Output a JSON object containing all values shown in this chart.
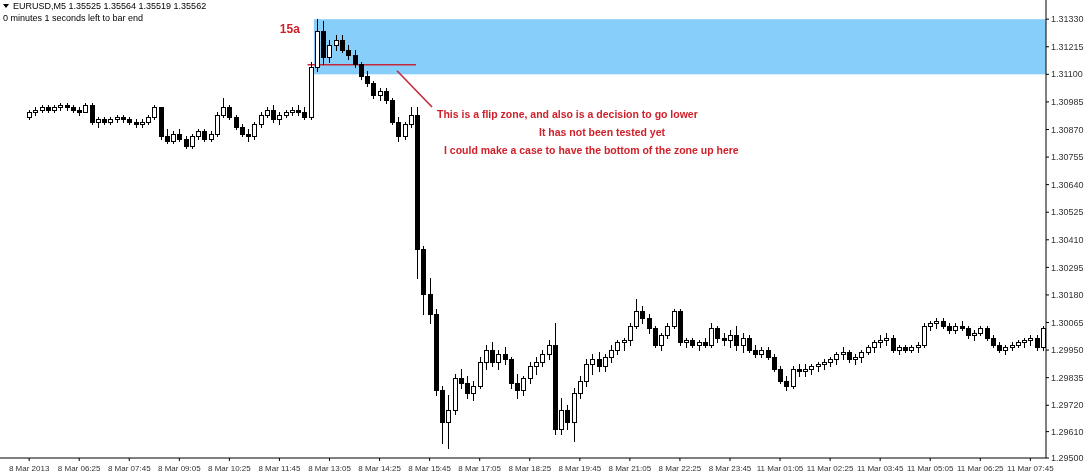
{
  "chart_data": {
    "type": "candlestick",
    "title": "EURUSD,M5 1.35525 1.35564 1.35519 1.35562",
    "subtitle": "0 minutes 1 seconds left to bar end",
    "annotations": [
      "15a",
      "This is a flip zone, and also is a decision to go lower",
      "It has not been tested yet",
      "I could make a case to have the bottom of the zone up here"
    ],
    "categories": [
      "8 Mar 2013",
      null,
      null,
      null,
      null,
      null,
      null,
      null,
      "8 Mar 06:25",
      null,
      null,
      null,
      null,
      null,
      null,
      null,
      "8 Mar 07:45",
      null,
      null,
      null,
      null,
      null,
      null,
      null,
      "8 Mar 09:05",
      null,
      null,
      null,
      null,
      null,
      null,
      null,
      "8 Mar 10:25",
      null,
      null,
      null,
      null,
      null,
      null,
      null,
      "8 Mar 11:45",
      null,
      null,
      null,
      null,
      null,
      null,
      null,
      "8 Mar 13:05",
      null,
      null,
      null,
      null,
      null,
      null,
      null,
      "8 Mar 14:25",
      null,
      null,
      null,
      null,
      null,
      null,
      null,
      "8 Mar 15:45",
      null,
      null,
      null,
      null,
      null,
      null,
      null,
      "8 Mar 17:05",
      null,
      null,
      null,
      null,
      null,
      null,
      null,
      "8 Mar 18:25",
      null,
      null,
      null,
      null,
      null,
      null,
      null,
      "8 Mar 19:45",
      null,
      null,
      null,
      null,
      null,
      null,
      null,
      "8 Mar 21:05",
      null,
      null,
      null,
      null,
      null,
      null,
      null,
      "8 Mar 22:25",
      null,
      null,
      null,
      null,
      null,
      null,
      null,
      "8 Mar 23:45",
      null,
      null,
      null,
      null,
      null,
      null,
      null,
      "11 Mar 01:05",
      null,
      null,
      null,
      null,
      null,
      null,
      null,
      "11 Mar 02:25",
      null,
      null,
      null,
      null,
      null,
      null,
      null,
      "11 Mar 03:45",
      null,
      null,
      null,
      null,
      null,
      null,
      null,
      "11 Mar 05:05",
      null,
      null,
      null,
      null,
      null,
      null,
      null,
      "11 Mar 06:25",
      null,
      null,
      null,
      null,
      null,
      null,
      null,
      "11 Mar 07:45",
      null,
      null
    ],
    "ohlc": [
      [
        1.3092,
        1.3095,
        1.3091,
        1.3094
      ],
      [
        1.3094,
        1.3096,
        1.3093,
        1.3095
      ],
      [
        1.3095,
        1.3097,
        1.3094,
        1.3096
      ],
      [
        1.3096,
        1.3097,
        1.3094,
        1.3095
      ],
      [
        1.3095,
        1.3097,
        1.3094,
        1.3096
      ],
      [
        1.3096,
        1.3098,
        1.3095,
        1.3097
      ],
      [
        1.3097,
        1.3098,
        1.3095,
        1.3096
      ],
      [
        1.3096,
        1.3097,
        1.3094,
        1.3095
      ],
      [
        1.3095,
        1.3096,
        1.3093,
        1.3094
      ],
      [
        1.3094,
        1.3098,
        1.3094,
        1.3097
      ],
      [
        1.3097,
        1.3098,
        1.3089,
        1.309
      ],
      [
        1.309,
        1.3092,
        1.3088,
        1.3091
      ],
      [
        1.3091,
        1.3092,
        1.3089,
        1.309
      ],
      [
        1.309,
        1.3092,
        1.3089,
        1.3091
      ],
      [
        1.3091,
        1.3093,
        1.309,
        1.3092
      ],
      [
        1.3092,
        1.3093,
        1.309,
        1.3091
      ],
      [
        1.3091,
        1.3092,
        1.3089,
        1.309
      ],
      [
        1.309,
        1.3091,
        1.3088,
        1.3089
      ],
      [
        1.3089,
        1.3091,
        1.3088,
        1.309
      ],
      [
        1.309,
        1.3093,
        1.3089,
        1.3092
      ],
      [
        1.3092,
        1.3097,
        1.3091,
        1.3096
      ],
      [
        1.3096,
        1.3096,
        1.3083,
        1.3084
      ],
      [
        1.3084,
        1.3087,
        1.3081,
        1.3082
      ],
      [
        1.3082,
        1.3086,
        1.3081,
        1.3085
      ],
      [
        1.3085,
        1.3087,
        1.3082,
        1.3083
      ],
      [
        1.3083,
        1.3084,
        1.3079,
        1.308
      ],
      [
        1.308,
        1.3085,
        1.3079,
        1.3084
      ],
      [
        1.3084,
        1.3087,
        1.3083,
        1.3086
      ],
      [
        1.3086,
        1.3087,
        1.3082,
        1.3083
      ],
      [
        1.3083,
        1.3086,
        1.3082,
        1.3085
      ],
      [
        1.3085,
        1.3094,
        1.3084,
        1.3093
      ],
      [
        1.3093,
        1.31,
        1.3092,
        1.3096
      ],
      [
        1.3096,
        1.3097,
        1.3091,
        1.3092
      ],
      [
        1.3092,
        1.3093,
        1.3087,
        1.3088
      ],
      [
        1.3088,
        1.3089,
        1.3084,
        1.3085
      ],
      [
        1.3085,
        1.3087,
        1.3082,
        1.3084
      ],
      [
        1.3084,
        1.309,
        1.3083,
        1.3089
      ],
      [
        1.3089,
        1.3094,
        1.3088,
        1.3093
      ],
      [
        1.3093,
        1.3096,
        1.3092,
        1.3095
      ],
      [
        1.3095,
        1.3097,
        1.309,
        1.3091
      ],
      [
        1.3091,
        1.3094,
        1.3089,
        1.3093
      ],
      [
        1.3093,
        1.3095,
        1.3092,
        1.3094
      ],
      [
        1.3094,
        1.3096,
        1.3093,
        1.3095
      ],
      [
        1.3095,
        1.3097,
        1.3093,
        1.3094
      ],
      [
        1.3094,
        1.3096,
        1.3091,
        1.3092
      ],
      [
        1.3092,
        1.3115,
        1.3091,
        1.3113
      ],
      [
        1.3113,
        1.3133,
        1.3111,
        1.3128
      ],
      [
        1.3128,
        1.3132,
        1.3114,
        1.3117
      ],
      [
        1.3117,
        1.3124,
        1.3115,
        1.3122
      ],
      [
        1.3122,
        1.3126,
        1.312,
        1.3124
      ],
      [
        1.3124,
        1.3126,
        1.3119,
        1.312
      ],
      [
        1.312,
        1.3122,
        1.3116,
        1.3118
      ],
      [
        1.3118,
        1.312,
        1.3113,
        1.3114
      ],
      [
        1.3114,
        1.3115,
        1.3108,
        1.3109
      ],
      [
        1.3109,
        1.3111,
        1.3105,
        1.3106
      ],
      [
        1.3106,
        1.3107,
        1.31,
        1.3101
      ],
      [
        1.3101,
        1.3104,
        1.3099,
        1.3103
      ],
      [
        1.3103,
        1.3104,
        1.3098,
        1.3099
      ],
      [
        1.3099,
        1.31,
        1.3089,
        1.309
      ],
      [
        1.309,
        1.3092,
        1.3082,
        1.3084
      ],
      [
        1.3084,
        1.309,
        1.3083,
        1.3089
      ],
      [
        1.3089,
        1.3096,
        1.3088,
        1.3093
      ],
      [
        1.3093,
        1.3096,
        1.3025,
        1.3037
      ],
      [
        1.3037,
        1.3038,
        1.301,
        1.3018
      ],
      [
        1.3018,
        1.3025,
        1.3006,
        1.301
      ],
      [
        1.301,
        1.3012,
        1.2976,
        1.2978
      ],
      [
        1.2978,
        1.298,
        1.2956,
        1.2965
      ],
      [
        1.2965,
        1.2976,
        1.2954,
        1.297
      ],
      [
        1.297,
        1.2985,
        1.2968,
        1.2983
      ],
      [
        1.2983,
        1.2987,
        1.2979,
        1.2981
      ],
      [
        1.2981,
        1.2984,
        1.2975,
        1.2977
      ],
      [
        1.2977,
        1.2982,
        1.2974,
        1.298
      ],
      [
        1.298,
        1.2992,
        1.2979,
        1.299
      ],
      [
        1.299,
        1.2997,
        1.2987,
        1.2995
      ],
      [
        1.2995,
        1.2998,
        1.2988,
        1.299
      ],
      [
        1.299,
        1.2995,
        1.2987,
        1.2993
      ],
      [
        1.2993,
        1.2996,
        1.2989,
        1.2991
      ],
      [
        1.2991,
        1.2992,
        1.2979,
        1.2981
      ],
      [
        1.2981,
        1.2985,
        1.2975,
        1.2978
      ],
      [
        1.2978,
        1.2984,
        1.2976,
        1.2983
      ],
      [
        1.2983,
        1.299,
        1.2981,
        1.2988
      ],
      [
        1.2988,
        1.2992,
        1.2985,
        1.299
      ],
      [
        1.299,
        1.2995,
        1.2988,
        1.2993
      ],
      [
        1.2993,
        1.2999,
        1.2991,
        1.2997
      ],
      [
        1.2997,
        1.3006,
        1.296,
        1.2962
      ],
      [
        1.2962,
        1.2975,
        1.296,
        1.297
      ],
      [
        1.297,
        1.2972,
        1.2962,
        1.2965
      ],
      [
        1.2965,
        1.2979,
        1.2957,
        1.2977
      ],
      [
        1.2977,
        1.2984,
        1.2975,
        1.2982
      ],
      [
        1.2982,
        1.2991,
        1.298,
        1.2989
      ],
      [
        1.2989,
        1.2993,
        1.2985,
        1.2991
      ],
      [
        1.2991,
        1.2994,
        1.2986,
        1.2988
      ],
      [
        1.2988,
        1.2993,
        1.2986,
        1.2992
      ],
      [
        1.2992,
        1.2997,
        1.299,
        1.2995
      ],
      [
        1.2995,
        1.2999,
        1.2993,
        1.2998
      ],
      [
        1.2998,
        1.3,
        1.2995,
        1.2999
      ],
      [
        1.2999,
        1.3006,
        1.2997,
        1.3005
      ],
      [
        1.3005,
        1.3016,
        1.3004,
        1.3011
      ],
      [
        1.3011,
        1.3013,
        1.3006,
        1.3008
      ],
      [
        1.3008,
        1.301,
        1.3002,
        1.3004
      ],
      [
        1.3004,
        1.3005,
        1.2996,
        1.2997
      ],
      [
        1.2997,
        1.3002,
        1.2995,
        1.3001
      ],
      [
        1.3001,
        1.3006,
        1.3,
        1.3005
      ],
      [
        1.3005,
        1.3012,
        1.3004,
        1.3011
      ],
      [
        1.3011,
        1.3012,
        1.2997,
        1.2998
      ],
      [
        1.2998,
        1.3,
        1.2996,
        1.2999
      ],
      [
        1.2999,
        1.3,
        1.2996,
        1.2997
      ],
      [
        1.2997,
        1.2999,
        1.2995,
        1.2998
      ],
      [
        1.2998,
        1.3,
        1.2996,
        1.2997
      ],
      [
        1.2997,
        1.3006,
        1.2996,
        1.3004
      ],
      [
        1.3004,
        1.3005,
        1.2998,
        1.3
      ],
      [
        1.3,
        1.3002,
        1.2997,
        1.2999
      ],
      [
        1.2999,
        1.3003,
        1.2996,
        1.3001
      ],
      [
        1.3001,
        1.3005,
        1.2995,
        1.2997
      ],
      [
        1.2997,
        1.3002,
        1.2994,
        1.3
      ],
      [
        1.3,
        1.3001,
        1.2994,
        1.2995
      ],
      [
        1.2995,
        1.2997,
        1.2992,
        1.2993
      ],
      [
        1.2993,
        1.2996,
        1.2992,
        1.2995
      ],
      [
        1.2995,
        1.2996,
        1.2991,
        1.2992
      ],
      [
        1.2992,
        1.2993,
        1.2986,
        1.2987
      ],
      [
        1.2987,
        1.2988,
        1.2981,
        1.2982
      ],
      [
        1.2982,
        1.2984,
        1.2978,
        1.298
      ],
      [
        1.298,
        1.2988,
        1.2979,
        1.2987
      ],
      [
        1.2987,
        1.2989,
        1.2984,
        1.2986
      ],
      [
        1.2986,
        1.2989,
        1.2984,
        1.2987
      ],
      [
        1.2987,
        1.2989,
        1.2985,
        1.2988
      ],
      [
        1.2988,
        1.299,
        1.2986,
        1.2989
      ],
      [
        1.2989,
        1.2991,
        1.2987,
        1.299
      ],
      [
        1.299,
        1.2992,
        1.2988,
        1.2991
      ],
      [
        1.2991,
        1.2994,
        1.2989,
        1.2993
      ],
      [
        1.2993,
        1.2996,
        1.2991,
        1.2994
      ],
      [
        1.2994,
        1.2995,
        1.299,
        1.2991
      ],
      [
        1.2991,
        1.2993,
        1.2989,
        1.2992
      ],
      [
        1.2992,
        1.2995,
        1.299,
        1.2994
      ],
      [
        1.2994,
        1.2997,
        1.2993,
        1.2996
      ],
      [
        1.2996,
        1.2999,
        1.2994,
        1.2998
      ],
      [
        1.2998,
        1.3001,
        1.2996,
        1.2999
      ],
      [
        1.2999,
        1.3002,
        1.2997,
        1.3
      ],
      [
        1.3,
        1.3001,
        1.2994,
        1.2995
      ],
      [
        1.2995,
        1.2997,
        1.2993,
        1.2996
      ],
      [
        1.2996,
        1.2997,
        1.2994,
        1.2995
      ],
      [
        1.2995,
        1.2997,
        1.2994,
        1.2996
      ],
      [
        1.2996,
        1.2998,
        1.2994,
        1.2997
      ],
      [
        1.2997,
        1.3006,
        1.2996,
        1.3005
      ],
      [
        1.3005,
        1.3007,
        1.3003,
        1.3006
      ],
      [
        1.3006,
        1.3008,
        1.3004,
        1.3007
      ],
      [
        1.3007,
        1.3008,
        1.3004,
        1.3005
      ],
      [
        1.3005,
        1.3006,
        1.3002,
        1.3003
      ],
      [
        1.3003,
        1.3006,
        1.3002,
        1.3005
      ],
      [
        1.3005,
        1.3007,
        1.3003,
        1.3004
      ],
      [
        1.3004,
        1.3005,
        1.3,
        1.3001
      ],
      [
        1.3001,
        1.3003,
        1.2999,
        1.3002
      ],
      [
        1.3002,
        1.3005,
        1.3001,
        1.3004
      ],
      [
        1.3004,
        1.3005,
        1.2999,
        1.3
      ],
      [
        1.3,
        1.3001,
        1.2996,
        1.2997
      ],
      [
        1.2997,
        1.2998,
        1.2994,
        1.2995
      ],
      [
        1.2995,
        1.2997,
        1.2993,
        1.2996
      ],
      [
        1.2996,
        1.2998,
        1.2995,
        1.2997
      ],
      [
        1.2997,
        1.2999,
        1.2996,
        1.2998
      ],
      [
        1.2998,
        1.3,
        1.2996,
        1.2999
      ],
      [
        1.2999,
        1.3001,
        1.2997,
        1.3
      ],
      [
        1.3,
        1.3001,
        1.2995,
        1.2996
      ],
      [
        1.2996,
        1.3005,
        1.2995,
        1.3004
      ]
    ],
    "color": "#000000",
    "ylim": [
      1.295,
      1.3141
    ],
    "yticks": [
      {
        "value": 1.3133,
        "label": "1.31330"
      },
      {
        "value": 1.31215,
        "label": "1.31215"
      },
      {
        "value": 1.311,
        "label": "1.31100"
      },
      {
        "value": 1.30985,
        "label": "1.30985"
      },
      {
        "value": 1.3087,
        "label": "1.30870"
      },
      {
        "value": 1.30755,
        "label": "1.30755"
      },
      {
        "value": 1.3064,
        "label": "1.30640"
      },
      {
        "value": 1.30525,
        "label": "1.30525"
      },
      {
        "value": 1.3041,
        "label": "1.30410"
      },
      {
        "value": 1.30295,
        "label": "1.30295"
      },
      {
        "value": 1.3018,
        "label": "1.30180"
      },
      {
        "value": 1.30065,
        "label": "1.30065"
      },
      {
        "value": 1.2995,
        "label": "1.29950"
      },
      {
        "value": 1.29835,
        "label": "1.29835"
      },
      {
        "value": 1.2972,
        "label": "1.29720"
      },
      {
        "value": 1.2961,
        "label": "1.29610"
      },
      {
        "value": 1.295,
        "label": "1.29500"
      }
    ],
    "bands": [
      {
        "axis": "y",
        "from": 1.311,
        "to": 1.3133,
        "color": "#87cefa"
      }
    ],
    "ref_lines": [
      {
        "axis": "y",
        "value": 1.3114,
        "color": "#c4283a"
      }
    ]
  }
}
